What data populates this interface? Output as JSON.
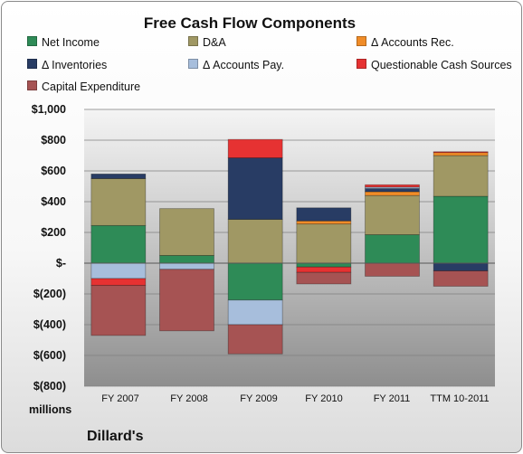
{
  "chart_data": {
    "type": "bar",
    "stacked": true,
    "title": "Free Cash Flow Components",
    "units_label": "millions",
    "brand": "Dillard's",
    "categories": [
      "FY 2007",
      "FY 2008",
      "FY 2009",
      "FY 2010",
      "FY 2011",
      "TTM 10-2011"
    ],
    "ylim": [
      -800,
      1000
    ],
    "yticks": [
      {
        "value": 1000,
        "label": "$1,000"
      },
      {
        "value": 800,
        "label": "$800"
      },
      {
        "value": 600,
        "label": "$600"
      },
      {
        "value": 400,
        "label": "$400"
      },
      {
        "value": 200,
        "label": "$200"
      },
      {
        "value": 0,
        "label": "$-"
      },
      {
        "value": -200,
        "label": "$(200)"
      },
      {
        "value": -400,
        "label": "$(400)"
      },
      {
        "value": -600,
        "label": "$(600)"
      },
      {
        "value": -800,
        "label": "$(800)"
      }
    ],
    "grid": true,
    "legend_position": "top",
    "series": [
      {
        "name": "Net Income",
        "color": "#2e8b57",
        "values": [
          245,
          50,
          -240,
          -25,
          185,
          435
        ]
      },
      {
        "name": "D&A",
        "color": "#a09864",
        "values": [
          305,
          305,
          285,
          255,
          255,
          265
        ]
      },
      {
        "name": "Δ Accounts Rec.",
        "color": "#f08c28",
        "values": [
          0,
          0,
          0,
          20,
          25,
          20
        ]
      },
      {
        "name": "Δ Inventories",
        "color": "#283c64",
        "values": [
          30,
          0,
          400,
          85,
          20,
          -50
        ]
      },
      {
        "name": "Δ Accounts Pay.",
        "color": "#a7bedc",
        "values": [
          -100,
          -40,
          -160,
          0,
          10,
          0
        ]
      },
      {
        "name": "Questionable Cash Sources",
        "color": "#e63232",
        "values": [
          -45,
          0,
          120,
          -35,
          15,
          5
        ]
      },
      {
        "name": "Capital Expenditure",
        "color": "#a65353",
        "values": [
          -325,
          -400,
          -190,
          -75,
          -85,
          -100
        ]
      }
    ]
  }
}
